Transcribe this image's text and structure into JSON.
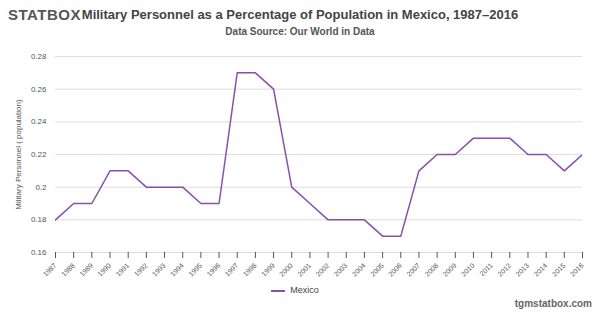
{
  "chart_data": {
    "type": "line",
    "logo": "STATBOX",
    "title": "Military Personnel as a Percentage of Population in Mexico, 1987–2016",
    "subtitle": "Data Source: Our World in Data",
    "y_label": "Military Personnel ( population)",
    "footer": "tgmstatbox.com",
    "x": [
      1987,
      1988,
      1989,
      1990,
      1991,
      1992,
      1993,
      1994,
      1995,
      1996,
      1997,
      1998,
      1999,
      2000,
      2001,
      2002,
      2003,
      2004,
      2005,
      2006,
      2007,
      2008,
      2009,
      2010,
      2011,
      2012,
      2013,
      2014,
      2015,
      2016
    ],
    "series": [
      {
        "name": "Mexico",
        "color": "#8b4fa8",
        "values": [
          0.18,
          0.19,
          0.19,
          0.21,
          0.21,
          0.2,
          0.2,
          0.2,
          0.19,
          0.19,
          0.27,
          0.27,
          0.26,
          0.2,
          0.19,
          0.18,
          0.18,
          0.18,
          0.17,
          0.17,
          0.21,
          0.22,
          0.22,
          0.23,
          0.23,
          0.23,
          0.22,
          0.22,
          0.21,
          0.22
        ]
      }
    ],
    "xlim": [
      1987,
      2016
    ],
    "xticks": [
      1987,
      1988,
      1989,
      1990,
      1991,
      1992,
      1993,
      1994,
      1995,
      1996,
      1997,
      1998,
      1999,
      2000,
      2001,
      2002,
      2003,
      2004,
      2005,
      2006,
      2007,
      2008,
      2009,
      2010,
      2011,
      2012,
      2013,
      2014,
      2015,
      2016
    ],
    "ylim": [
      0.16,
      0.28
    ],
    "yticks": [
      0.16,
      0.18,
      0.2,
      0.22,
      0.24,
      0.26,
      0.28
    ],
    "grid": true,
    "legend": "bottom"
  }
}
